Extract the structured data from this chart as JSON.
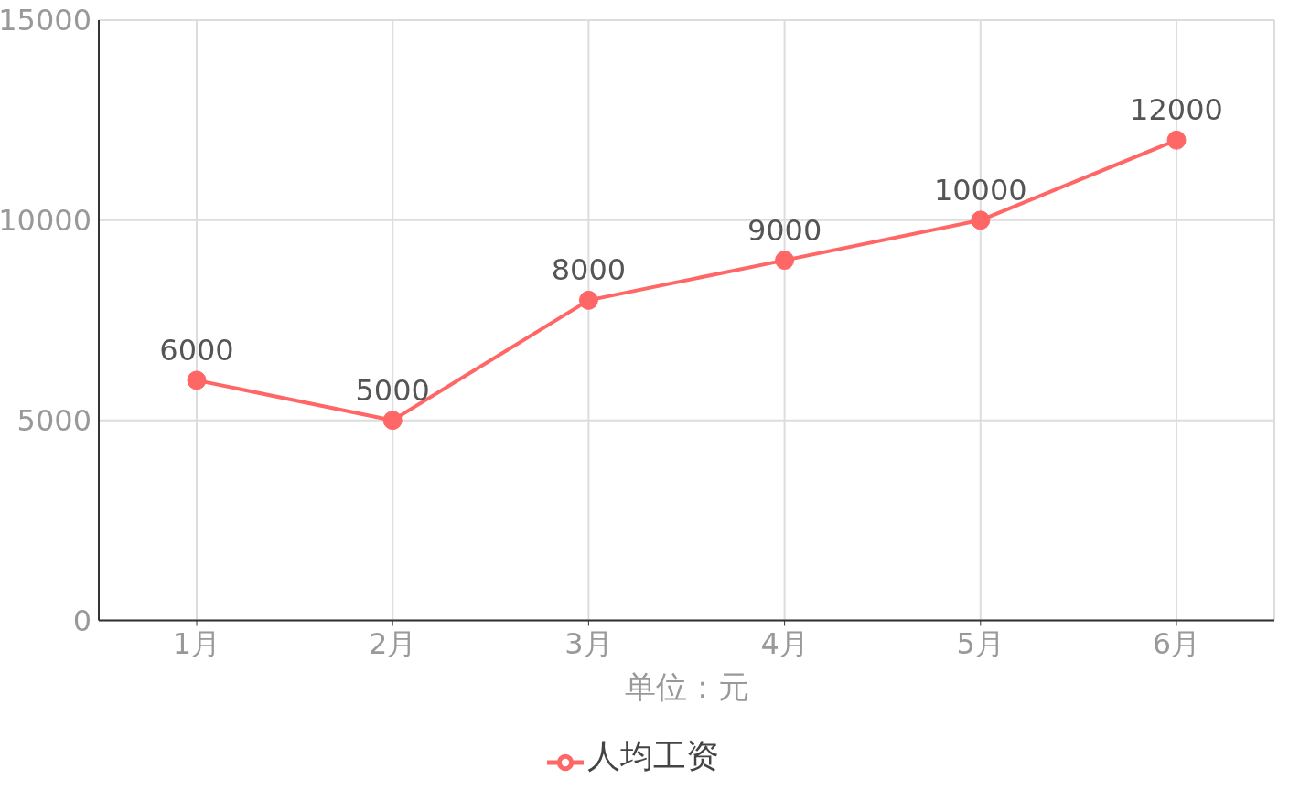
{
  "chart_data": {
    "type": "line",
    "xlabel": "单位：元",
    "categories": [
      "1月",
      "2月",
      "3月",
      "4月",
      "5月",
      "6月"
    ],
    "series": [
      {
        "name": "人均工资",
        "color": "#ff6666",
        "values": [
          6000,
          5000,
          8000,
          9000,
          10000,
          12000
        ]
      }
    ],
    "ylim": [
      0,
      15000
    ],
    "yticks": [
      0,
      5000,
      10000,
      15000
    ],
    "grid": true,
    "legend": "bottom",
    "marker": "circle",
    "data_labels": true
  }
}
